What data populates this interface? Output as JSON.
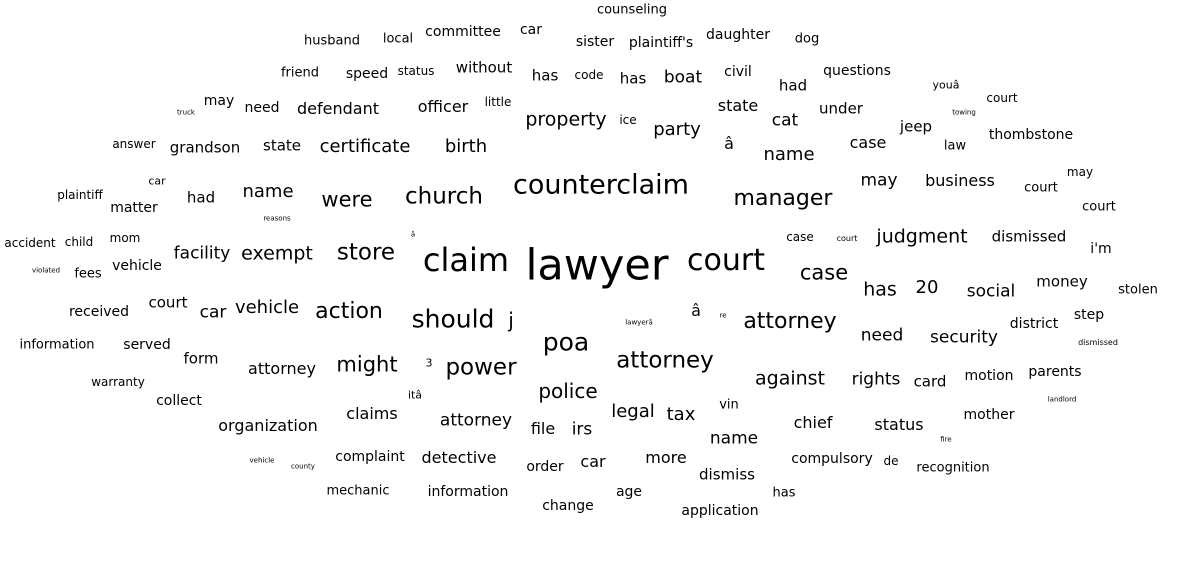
{
  "words": [
    "counseling",
    "husband",
    "local",
    "committee",
    "car",
    "sister",
    "plaintiff's",
    "daughter",
    "dog",
    "friend",
    "speed",
    "status",
    "without",
    "has",
    "code",
    "has",
    "boat",
    "civil",
    "had",
    "questions",
    "youâ",
    "court",
    "truck",
    "may",
    "need",
    "defendant",
    "officer",
    "little",
    "property",
    "ice",
    "party",
    "state",
    "cat",
    "under",
    "towing",
    "jeep",
    "thombstone",
    "answer",
    "grandson",
    "state",
    "certificate",
    "birth",
    "â",
    "name",
    "case",
    "law",
    "car",
    "plaintiff",
    "had",
    "name",
    "were",
    "church",
    "counterclaim",
    "manager",
    "may",
    "business",
    "court",
    "may",
    "matter",
    "reasons",
    "court",
    "accident",
    "child",
    "mom",
    "â",
    "case",
    "court",
    "judgment",
    "dismissed",
    "i'm",
    "violated",
    "fees",
    "vehicle",
    "facility",
    "exempt",
    "store",
    "claim",
    "lawyer",
    "court",
    "case",
    "has",
    "20",
    "social",
    "money",
    "stolen",
    "received",
    "court",
    "car",
    "vehicle",
    "action",
    "should",
    "j",
    "â",
    "lawyerâ",
    "re",
    "attorney",
    "step",
    "district",
    "information",
    "served",
    "poa",
    "need",
    "security",
    "dismissed",
    "form",
    "attorney",
    "might",
    "3",
    "power",
    "attorney",
    "warranty",
    "rights",
    "card",
    "motion",
    "parents",
    "against",
    "collect",
    "itâ",
    "police",
    "landlord",
    "claims",
    "organization",
    "attorney",
    "legal",
    "tax",
    "vin",
    "chief",
    "status",
    "mother",
    "file",
    "irs",
    "name",
    "fire",
    "vehicle",
    "county",
    "complaint",
    "detective",
    "car",
    "more",
    "compulsory",
    "de",
    "recognition",
    "order",
    "dismiss",
    "mechanic",
    "information",
    "age",
    "has",
    "change",
    "application"
  ]
}
